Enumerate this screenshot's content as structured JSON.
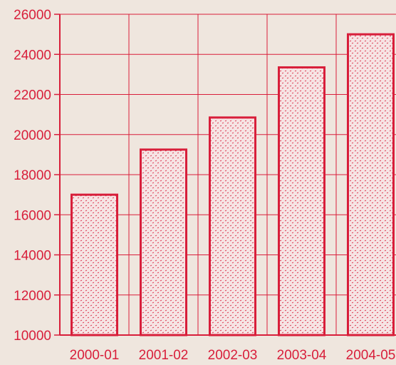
{
  "chart_data": {
    "type": "bar",
    "title": "",
    "xlabel": "",
    "ylabel": "",
    "categories": [
      "2000-01",
      "2001-02",
      "2002-03",
      "2003-04",
      "2004-05"
    ],
    "values": [
      17000,
      19250,
      20850,
      23350,
      25000
    ],
    "ylim": [
      10000,
      26000
    ],
    "yticks": [
      10000,
      12000,
      14000,
      16000,
      18000,
      20000,
      22000,
      24000,
      26000
    ],
    "ytick_labels": [
      "10000",
      "12000",
      "14000",
      "16000",
      "18000",
      "20000",
      "22000",
      "24000",
      "26000"
    ],
    "grid": true,
    "legend": "none",
    "colors": {
      "ink": "#d81e3a",
      "background": "#efe6de",
      "bar_fill": "#f4dada"
    }
  }
}
